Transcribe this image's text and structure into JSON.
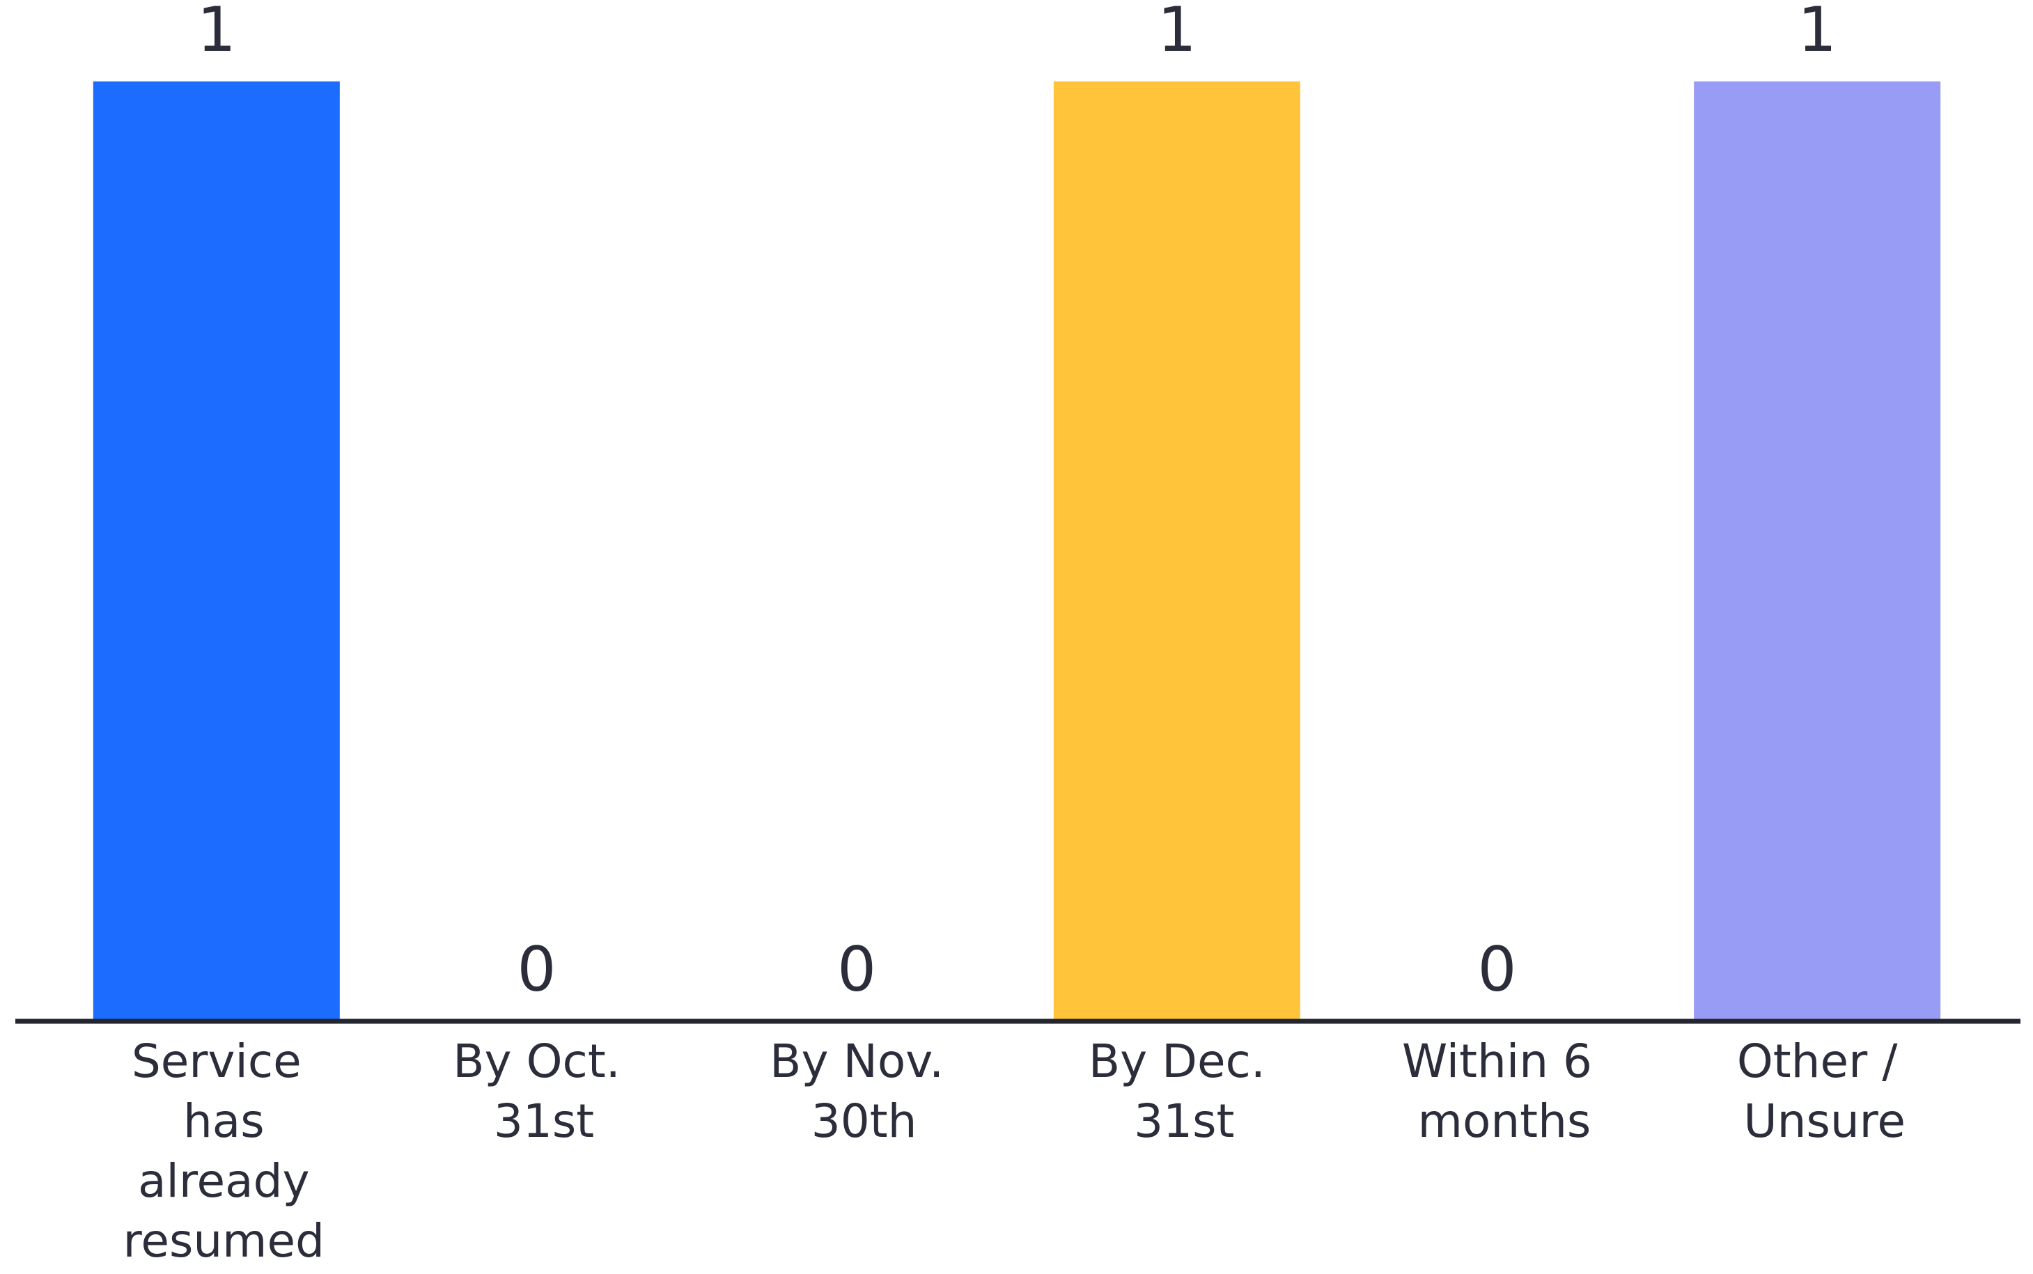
{
  "chart_data": {
    "type": "bar",
    "categories": [
      "Service has already resumed",
      "By Oct. 31st",
      "By Nov. 30th",
      "By Dec. 31st",
      "Within 6 months",
      "Other / Unsure"
    ],
    "values": [
      1,
      0,
      0,
      1,
      0,
      1
    ],
    "colors": [
      "#1c6cff",
      "#ff8a80",
      "#4fd1a5",
      "#ffc43a",
      "#f26d9b",
      "#989cf5"
    ],
    "ylim": [
      0,
      1
    ]
  }
}
